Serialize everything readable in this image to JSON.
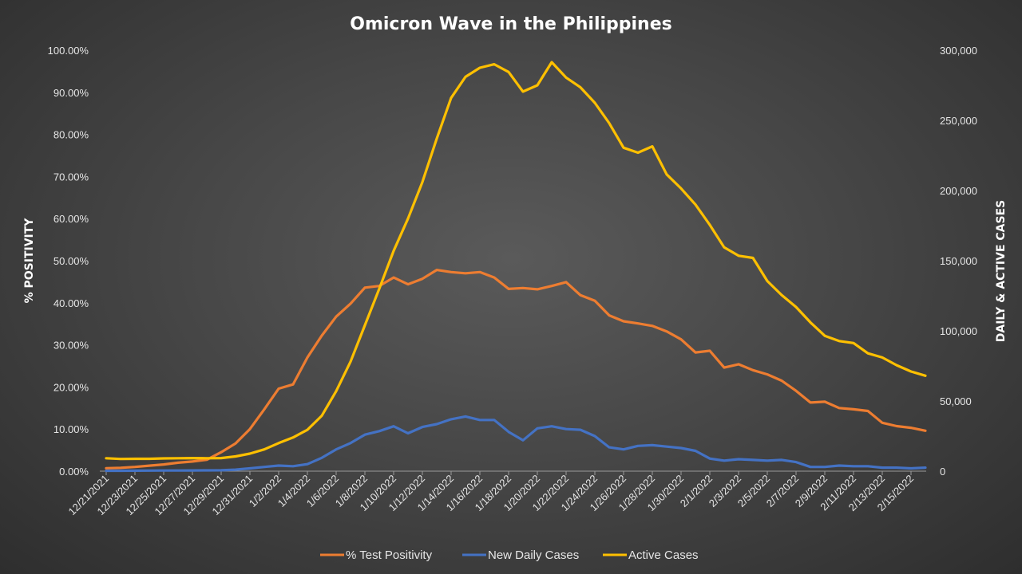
{
  "chart_data": {
    "type": "line",
    "title": "Omicron Wave in the Philippines",
    "ylabel_left": "% POSITIVITY",
    "ylabel_right": "DAILY & ACTIVE CASES",
    "ylim_left": [
      0,
      100
    ],
    "ylim_right": [
      0,
      300000
    ],
    "yticks_left": [
      "0.00%",
      "10.00%",
      "20.00%",
      "30.00%",
      "40.00%",
      "50.00%",
      "60.00%",
      "70.00%",
      "80.00%",
      "90.00%",
      "100.00%"
    ],
    "yticks_right": [
      "0",
      "50,000",
      "100,000",
      "150,000",
      "200,000",
      "250,000",
      "300,000"
    ],
    "x_tick_labels": [
      "12/21/2021",
      "12/23/2021",
      "12/25/2021",
      "12/27/2021",
      "12/29/2021",
      "12/31/2021",
      "1/2/2022",
      "1/4/2022",
      "1/6/2022",
      "1/8/2022",
      "1/10/2022",
      "1/12/2022",
      "1/14/2022",
      "1/16/2022",
      "1/18/2022",
      "1/20/2022",
      "1/22/2022",
      "1/24/2022",
      "1/26/2022",
      "1/28/2022",
      "1/30/2022",
      "2/1/2022",
      "2/3/2022",
      "2/5/2022",
      "2/7/2022",
      "2/9/2022",
      "2/11/2022",
      "2/13/2022",
      "2/15/2022"
    ],
    "x": [
      "12/21/2021",
      "12/22/2021",
      "12/23/2021",
      "12/24/2021",
      "12/25/2021",
      "12/26/2021",
      "12/27/2021",
      "12/28/2021",
      "12/29/2021",
      "12/30/2021",
      "12/31/2021",
      "1/1/2022",
      "1/2/2022",
      "1/3/2022",
      "1/4/2022",
      "1/5/2022",
      "1/6/2022",
      "1/7/2022",
      "1/8/2022",
      "1/9/2022",
      "1/10/2022",
      "1/11/2022",
      "1/12/2022",
      "1/13/2022",
      "1/14/2022",
      "1/15/2022",
      "1/16/2022",
      "1/17/2022",
      "1/18/2022",
      "1/19/2022",
      "1/20/2022",
      "1/21/2022",
      "1/22/2022",
      "1/23/2022",
      "1/24/2022",
      "1/25/2022",
      "1/26/2022",
      "1/27/2022",
      "1/28/2022",
      "1/29/2022",
      "1/30/2022",
      "1/31/2022",
      "2/1/2022",
      "2/2/2022",
      "2/3/2022",
      "2/4/2022",
      "2/5/2022",
      "2/6/2022",
      "2/7/2022",
      "2/8/2022",
      "2/9/2022",
      "2/10/2022",
      "2/11/2022",
      "2/12/2022",
      "2/13/2022",
      "2/14/2022",
      "2/15/2022",
      "2/16/2022"
    ],
    "legend_position": "bottom",
    "grid": false,
    "series": [
      {
        "name": "% Test Positivity",
        "axis": "left",
        "color": "#ed7d31",
        "values": [
          0.7,
          0.8,
          1.0,
          1.3,
          1.6,
          2.0,
          2.3,
          2.7,
          4.5,
          6.6,
          10.0,
          14.7,
          19.6,
          20.6,
          27.0,
          32.2,
          36.7,
          39.8,
          43.6,
          44.0,
          46.0,
          44.4,
          45.7,
          47.8,
          47.3,
          47.0,
          47.3,
          46.0,
          43.3,
          43.5,
          43.2,
          44.0,
          44.9,
          41.8,
          40.5,
          37.0,
          35.6,
          35.1,
          34.5,
          33.2,
          31.3,
          28.2,
          28.6,
          24.6,
          25.4,
          24.0,
          23.0,
          21.5,
          19.1,
          16.3,
          16.5,
          15.0,
          14.7,
          14.3,
          11.5,
          10.7,
          10.3,
          9.6
        ]
      },
      {
        "name": "New Daily Cases",
        "axis": "right",
        "color": "#4472c4",
        "values": [
          300,
          300,
          350,
          400,
          450,
          450,
          500,
          550,
          600,
          1100,
          2000,
          3000,
          4000,
          3500,
          5000,
          9500,
          15500,
          20000,
          26000,
          28500,
          32000,
          27000,
          31500,
          33500,
          37000,
          39000,
          36500,
          36500,
          28000,
          22000,
          30500,
          32000,
          30000,
          29500,
          25000,
          17000,
          15500,
          18000,
          18500,
          17500,
          16500,
          14500,
          9000,
          7500,
          8500,
          8000,
          7500,
          8000,
          6500,
          3000,
          3000,
          4000,
          3500,
          3500,
          2500,
          2500,
          2000,
          2500
        ]
      },
      {
        "name": "Active Cases",
        "axis": "right",
        "color": "#ffc000",
        "values": [
          9200,
          8700,
          8800,
          8800,
          9100,
          9200,
          9300,
          9200,
          9300,
          10500,
          12500,
          15500,
          20000,
          24000,
          29500,
          39500,
          57000,
          78000,
          104000,
          130000,
          157000,
          180000,
          206000,
          237000,
          266000,
          281000,
          287500,
          290000,
          284500,
          270500,
          275000,
          291500,
          280500,
          273500,
          262500,
          248000,
          230500,
          227000,
          231500,
          211500,
          201500,
          190000,
          175500,
          159500,
          153500,
          152000,
          135500,
          125500,
          117000,
          106000,
          96500,
          92700,
          91300,
          84000,
          81000,
          75500,
          71000,
          68000
        ]
      }
    ]
  }
}
